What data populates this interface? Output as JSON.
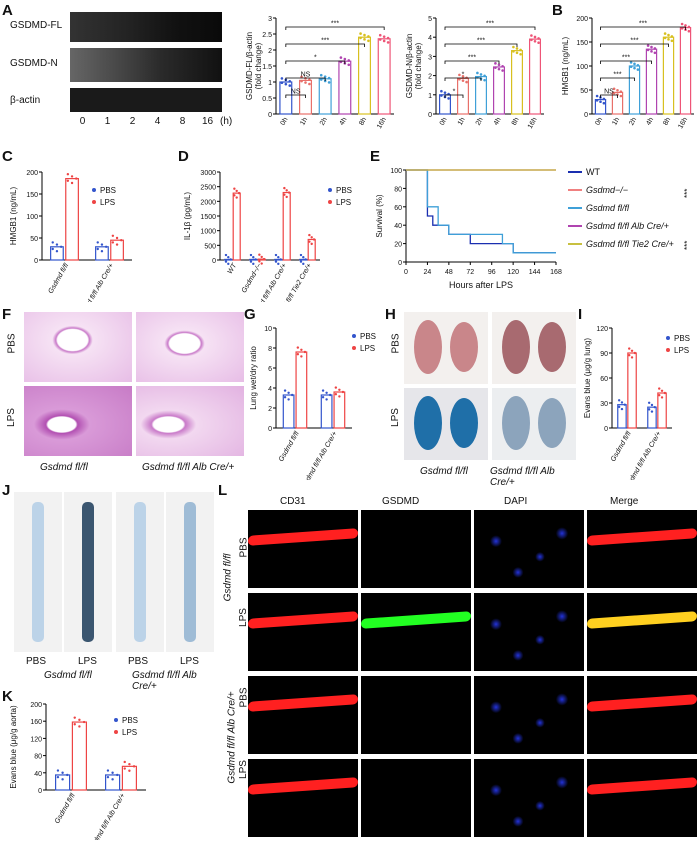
{
  "panel_letters": [
    "A",
    "B",
    "C",
    "D",
    "E",
    "F",
    "G",
    "H",
    "I",
    "J",
    "K",
    "L"
  ],
  "western_blot": {
    "rows": [
      "GSDMD-FL",
      "GSDMD-N",
      "β-actin"
    ],
    "timepoints": [
      "0",
      "1",
      "2",
      "4",
      "8",
      "16"
    ],
    "unit": "(h)"
  },
  "chart_data": [
    {
      "id": "A1",
      "type": "bar",
      "title": "",
      "ylabel": "GSDMD-FL/β-actin\n(fold change)",
      "categories": [
        "0h",
        "1h",
        "2h",
        "4h",
        "8h",
        "16h"
      ],
      "values": [
        1.0,
        1.05,
        1.1,
        1.65,
        2.4,
        2.35
      ],
      "ylim": [
        0,
        3.0
      ],
      "yticks": [
        0.0,
        0.5,
        1.0,
        1.5,
        2.0,
        2.5,
        3.0
      ],
      "colors": [
        "#3355cc",
        "#e8706a",
        "#3fa0d8",
        "#b044b0",
        "#d8c020",
        "#ee5577"
      ],
      "sig": [
        {
          "pair": [
            0,
            1
          ],
          "text": "NS"
        },
        {
          "pair": [
            0,
            2
          ],
          "text": "NS"
        },
        {
          "pair": [
            0,
            3
          ],
          "text": "*"
        },
        {
          "pair": [
            0,
            4
          ],
          "text": "***"
        },
        {
          "pair": [
            0,
            5
          ],
          "text": "***"
        }
      ]
    },
    {
      "id": "A2",
      "type": "bar",
      "title": "",
      "ylabel": "GSDMD-N/β-actin\n(fold change)",
      "categories": [
        "0h",
        "1h",
        "2h",
        "4h",
        "8h",
        "16h"
      ],
      "values": [
        1.0,
        1.85,
        1.95,
        2.45,
        3.3,
        3.9
      ],
      "ylim": [
        0,
        5
      ],
      "yticks": [
        0,
        1,
        2,
        3,
        4,
        5
      ],
      "colors": [
        "#3355cc",
        "#e8706a",
        "#3fa0d8",
        "#b044b0",
        "#d8c020",
        "#ee5577"
      ],
      "sig": [
        {
          "pair": [
            0,
            1
          ],
          "text": "*"
        },
        {
          "pair": [
            0,
            2
          ],
          "text": "*"
        },
        {
          "pair": [
            0,
            3
          ],
          "text": "***"
        },
        {
          "pair": [
            0,
            4
          ],
          "text": "***"
        },
        {
          "pair": [
            0,
            5
          ],
          "text": "***"
        }
      ]
    },
    {
      "id": "B",
      "type": "bar",
      "title": "",
      "ylabel": "HMGB1 (ng/mL)",
      "categories": [
        "0h",
        "1h",
        "2h",
        "4h",
        "8h",
        "16h"
      ],
      "values": [
        30,
        45,
        100,
        135,
        160,
        180
      ],
      "ylim": [
        0,
        200
      ],
      "yticks": [
        0,
        50,
        100,
        150,
        200
      ],
      "colors": [
        "#3355cc",
        "#e8706a",
        "#3fa0d8",
        "#b044b0",
        "#d8c020",
        "#ee5577"
      ],
      "sig": [
        {
          "pair": [
            0,
            1
          ],
          "text": "NS"
        },
        {
          "pair": [
            0,
            2
          ],
          "text": "***"
        },
        {
          "pair": [
            0,
            3
          ],
          "text": "***"
        },
        {
          "pair": [
            0,
            4
          ],
          "text": "***"
        },
        {
          "pair": [
            0,
            5
          ],
          "text": "***"
        }
      ]
    },
    {
      "id": "C",
      "type": "bar",
      "title": "",
      "ylabel": "HMGB1 (ng/mL)",
      "categories": [
        "Gsdmd fl/fl",
        "Gsdmd fl/fl Alb Cre/+"
      ],
      "series": [
        {
          "name": "PBS",
          "values": [
            30,
            30
          ]
        },
        {
          "name": "LPS",
          "values": [
            185,
            45
          ]
        }
      ],
      "ylim": [
        0,
        200
      ],
      "yticks": [
        0,
        50,
        100,
        150,
        200
      ],
      "sig": [
        "***",
        "***",
        "NS"
      ]
    },
    {
      "id": "D",
      "type": "bar",
      "title": "",
      "ylabel": "IL-1β (pg/mL)",
      "categories": [
        "WT",
        "Gsdmd−/−",
        "Gsdmd fl/fl Alb Cre/+",
        "Gsdmd fl/fl Tie2 Cre/+"
      ],
      "series": [
        {
          "name": "PBS",
          "values": [
            20,
            20,
            20,
            20
          ]
        },
        {
          "name": "LPS",
          "values": [
            2280,
            30,
            2300,
            700
          ]
        }
      ],
      "ylim": [
        0,
        3000
      ],
      "yticks": [
        0,
        500,
        1000,
        1500,
        2000,
        2500,
        3000
      ],
      "sig": [
        "***",
        "***",
        "NS",
        "***",
        "***",
        "***"
      ]
    },
    {
      "id": "E",
      "type": "line",
      "title": "",
      "xlabel": "Hours after LPS",
      "ylabel": "Survival (%)",
      "xlim": [
        0,
        168
      ],
      "xticks": [
        0,
        24,
        48,
        72,
        96,
        120,
        144,
        168
      ],
      "ylim": [
        0,
        100
      ],
      "yticks": [
        0,
        10,
        20,
        30,
        40,
        50,
        60,
        70,
        80,
        90,
        100
      ],
      "series": [
        {
          "name": "WT",
          "color": "#1a2fb0",
          "x": [
            0,
            24,
            30,
            36,
            48,
            60,
            72,
            96,
            120,
            168
          ],
          "y": [
            100,
            50,
            40,
            40,
            30,
            30,
            20,
            20,
            10,
            10
          ]
        },
        {
          "name": "Gsdmd−/−",
          "color": "#f08080",
          "x": [
            0,
            168
          ],
          "y": [
            100,
            100
          ]
        },
        {
          "name": "Gsdmd fl/fl",
          "color": "#3fa0d8",
          "x": [
            0,
            24,
            36,
            48,
            84,
            108,
            120,
            168
          ],
          "y": [
            100,
            60,
            40,
            30,
            30,
            20,
            10,
            10
          ]
        },
        {
          "name": "Gsdmd fl/fl Alb Cre/+",
          "color": "#b044b0",
          "x": [
            0,
            168
          ],
          "y": [
            100,
            100
          ]
        },
        {
          "name": "Gsdmd fl/fl Tie2 Cre/+",
          "color": "#c8c040",
          "x": [
            0,
            168
          ],
          "y": [
            100,
            100
          ]
        }
      ],
      "sig": [
        "***",
        "***",
        "***",
        "NS"
      ]
    },
    {
      "id": "G",
      "type": "bar",
      "title": "",
      "ylabel": "Lung wet/dry ratio",
      "categories": [
        "Gsdmd fl/fl",
        "Gsdmd fl/fl Alb Cre/+"
      ],
      "series": [
        {
          "name": "PBS",
          "values": [
            3.3,
            3.3
          ]
        },
        {
          "name": "LPS",
          "values": [
            7.6,
            3.6
          ]
        }
      ],
      "ylim": [
        0,
        10
      ],
      "yticks": [
        0,
        2,
        4,
        6,
        8,
        10
      ],
      "sig": [
        "***",
        "***",
        "NS"
      ]
    },
    {
      "id": "I",
      "type": "bar",
      "title": "",
      "ylabel": "Evans blue (μg/g lung)",
      "categories": [
        "Gsdmd fl/fl",
        "Gsdmd fl/fl Alb Cre/+"
      ],
      "series": [
        {
          "name": "PBS",
          "values": [
            28,
            25
          ]
        },
        {
          "name": "LPS",
          "values": [
            90,
            42
          ]
        }
      ],
      "ylim": [
        0,
        120
      ],
      "yticks": [
        0,
        30,
        60,
        90,
        120
      ],
      "sig": [
        "***",
        "***",
        "NS"
      ]
    },
    {
      "id": "K",
      "type": "bar",
      "title": "",
      "ylabel": "Evans blue (μg/g aorta)",
      "categories": [
        "Gsdmd fl/fl",
        "Gsdmd fl/fl Alb Cre/+"
      ],
      "series": [
        {
          "name": "PBS",
          "values": [
            35,
            35
          ]
        },
        {
          "name": "LPS",
          "values": [
            158,
            55
          ]
        }
      ],
      "ylim": [
        0,
        200
      ],
      "yticks": [
        0,
        40,
        80,
        120,
        160,
        200
      ],
      "sig": [
        "***",
        "***",
        "NS"
      ]
    }
  ],
  "legend": {
    "pbs": "PBS",
    "lps": "LPS"
  },
  "colors": {
    "pbs": "#3355cc",
    "lps": "#ee4444"
  },
  "panel_F": {
    "rows": [
      "PBS",
      "LPS"
    ],
    "cols": [
      "Gsdmd fl/fl",
      "Gsdmd fl/fl Alb Cre/+"
    ]
  },
  "panel_H": {
    "rows": [
      "PBS",
      "LPS"
    ],
    "cols": [
      "Gsdmd fl/fl",
      "Gsdmd fl/fl Alb Cre/+"
    ]
  },
  "panel_J": {
    "labels": [
      "PBS",
      "LPS",
      "PBS",
      "LPS"
    ],
    "groups": [
      "Gsdmd fl/fl",
      "Gsdmd fl/fl Alb Cre/+"
    ]
  },
  "panel_L": {
    "cols": [
      "CD31",
      "GSDMD",
      "DAPI",
      "Merge"
    ],
    "rows": [
      "PBS",
      "LPS",
      "PBS",
      "LPS"
    ],
    "groups": [
      "Gsdmd fl/fl",
      "Gsdmd fl/fl Alb Cre/+"
    ]
  }
}
